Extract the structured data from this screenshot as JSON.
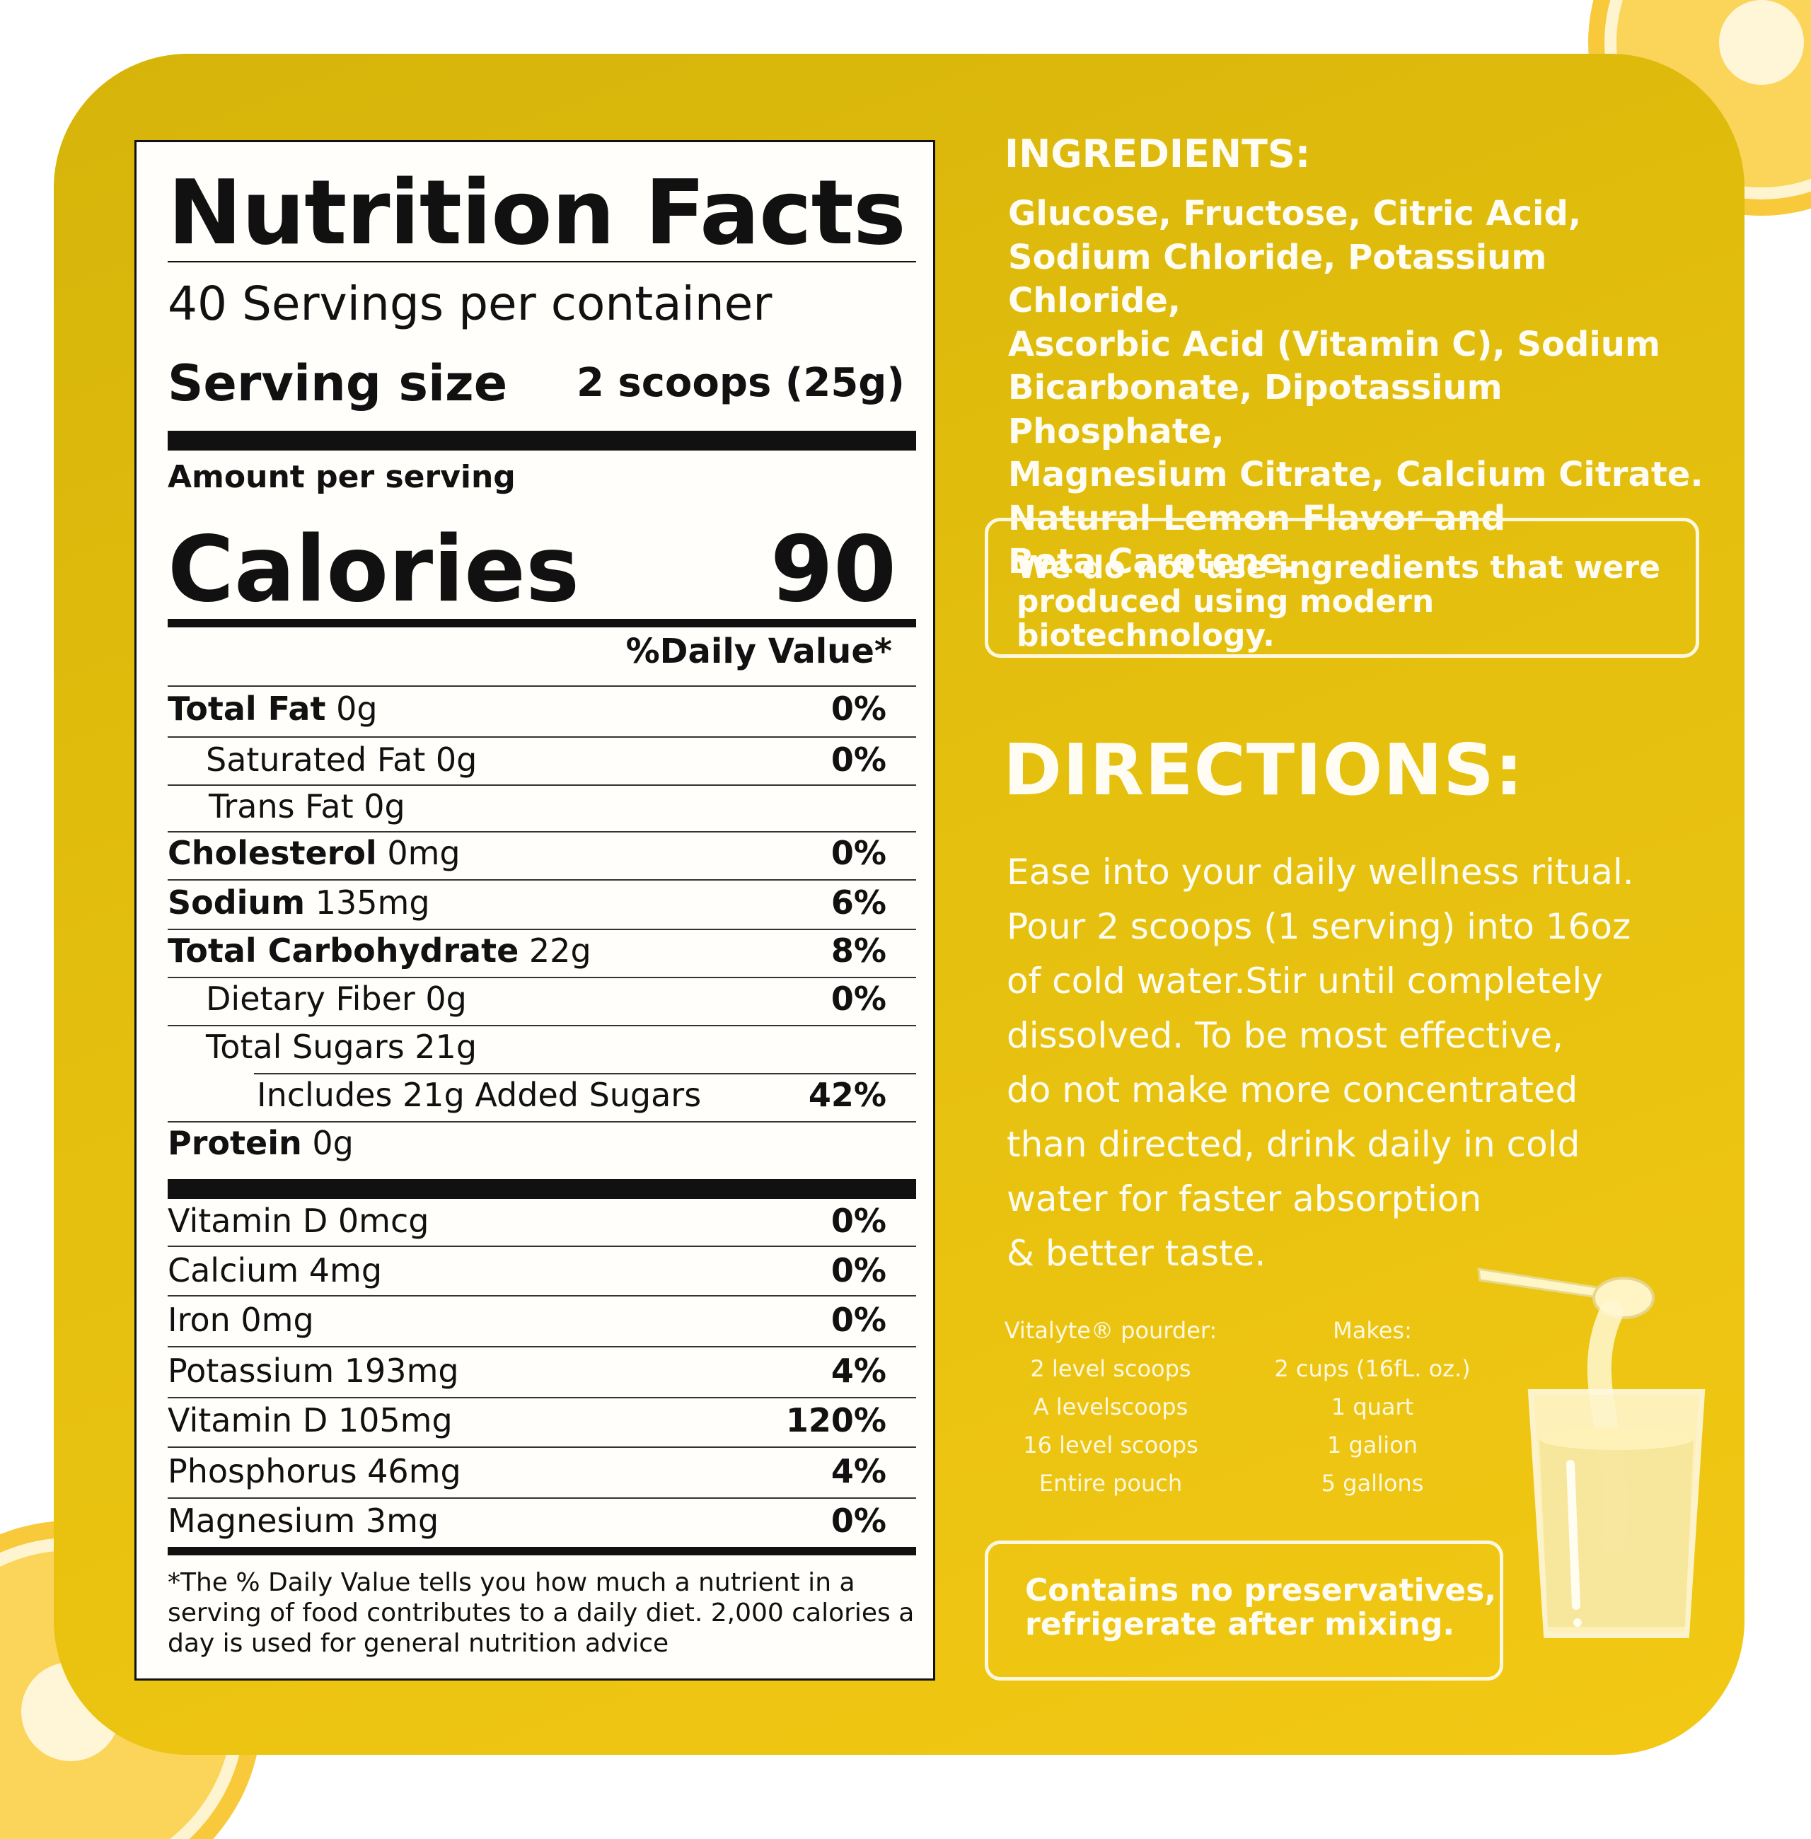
{
  "nutrition": {
    "title": "Nutrition Facts",
    "servings": "40 Servings per container",
    "serving_size_label": "Serving size",
    "serving_size_value": "2 scoops (25g)",
    "amount_per_serving": "Amount per serving",
    "calories_label": "Calories",
    "calories_value": "90",
    "daily_value_header": "%Daily Value*",
    "rows": [
      {
        "bold": "Total Fat",
        "rest": "0g",
        "pct": "0%"
      },
      {
        "bold": "",
        "rest": "Saturated Fat 0g",
        "pct": "0%"
      },
      {
        "bold": "",
        "rest": "Trans Fat 0g",
        "pct": ""
      },
      {
        "bold": "Cholesterol",
        "rest": "0mg",
        "pct": "0%"
      },
      {
        "bold": "Sodium",
        "rest": "135mg",
        "pct": "6%"
      },
      {
        "bold": "Total Carbohydrate",
        "rest": "22g",
        "pct": "8%"
      },
      {
        "bold": "",
        "rest": "Dietary Fiber 0g",
        "pct": "0%"
      },
      {
        "bold": "",
        "rest": "Total Sugars 21g",
        "pct": ""
      },
      {
        "bold": "",
        "rest": "Includes 21g Added Sugars",
        "pct": "42%"
      },
      {
        "bold": "Protein",
        "rest": "0g",
        "pct": ""
      }
    ],
    "vitamins": [
      {
        "name": "Vitamin D 0mcg",
        "pct": "0%"
      },
      {
        "name": "Calcium 4mg",
        "pct": "0%"
      },
      {
        "name": "Iron 0mg",
        "pct": "0%"
      },
      {
        "name": "Potassium 193mg",
        "pct": "4%"
      },
      {
        "name": "Vitamin D 105mg",
        "pct": "120%"
      },
      {
        "name": "Phosphorus 46mg",
        "pct": "4%"
      },
      {
        "name": "Magnesium 3mg",
        "pct": "0%"
      }
    ],
    "footnote": "*The % Daily Value tells you how much a nutrient in a serving of food contributes to a daily diet. 2,000 calories a day is used for general nutrition advice"
  },
  "ingredients": {
    "title": "INGREDIENTS:",
    "lines": [
      "Glucose, Fructose, Citric Acid,",
      "Sodium Chloride, Potassium Chloride,",
      "Ascorbic Acid (Vitamin C), Sodium",
      "Bicarbonate, Dipotassium Phosphate,",
      "Magnesium Citrate, Calcium Citrate.",
      "Natural Lemon Flavor and",
      "Beta Carotene."
    ],
    "notice_lines": [
      "We do not use ingredients that were",
      "produced using modern biotechnology."
    ]
  },
  "directions": {
    "title": "DIRECTIONS:",
    "lines": [
      "Ease into your daily wellness ritual.",
      "Pour 2 scoops (1 serving) into 16oz",
      "of cold water.Stir until completely",
      "dissolved. To be most effective,",
      "do not make more concentrated",
      "than directed, drink daily in cold",
      "water for faster absorption",
      "& better taste."
    ],
    "table": {
      "col1_header": "Vitalyte® pourder:",
      "col2_header": "Makes:",
      "col1": [
        "2 level scoops",
        "A levelscoops",
        "16 level scoops",
        "Entire pouch"
      ],
      "col2": [
        "2 cups (16fL. oz.)",
        "1 quart",
        "1 galion",
        "5 gallons"
      ]
    },
    "notice_lines": [
      "Contains no preservatives,",
      "refrigerate after mixing."
    ]
  },
  "icons": [
    "lemon-slice-icon",
    "scoop-icon",
    "glass-icon"
  ],
  "colors": {
    "panel": "#e4bf0e",
    "label_bg": "#fffefb",
    "text_light": "#fffdf3"
  }
}
